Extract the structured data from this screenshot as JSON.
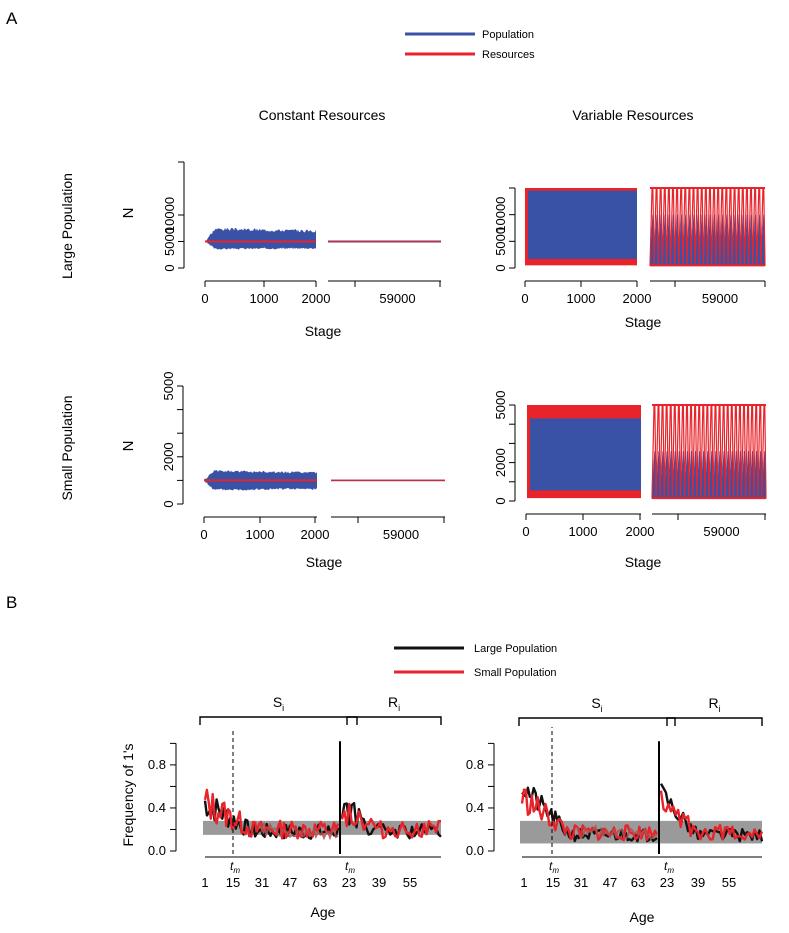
{
  "panel_labels": {
    "a": "A",
    "b": "B"
  },
  "colors": {
    "population": "#3a52a6",
    "resources": "#e8232a",
    "large": "#111111",
    "small": "#e8232a",
    "band": "#9a9a9a",
    "blend": "#b05050"
  },
  "legend_a": [
    {
      "label": "Population",
      "color": "#3a52a6"
    },
    {
      "label": "Resources",
      "color": "#e8232a"
    }
  ],
  "legend_b": [
    {
      "label": "Large Population",
      "color": "#111111"
    },
    {
      "label": "Small Population",
      "color": "#e8232a"
    }
  ],
  "column_titles": [
    "Constant Resources",
    "Variable Resources"
  ],
  "row_titles": [
    "Large Population",
    "Small Population"
  ],
  "chart_data": [
    {
      "id": "A-large-constant",
      "type": "line",
      "ylabel": "N",
      "xlabel": "Stage",
      "yticks": [
        "0",
        "5000",
        "10000"
      ],
      "ylim": [
        0,
        20000
      ],
      "xticks_left": [
        "0",
        "1000",
        "2000"
      ],
      "xtick_right": "59000",
      "series": [
        {
          "name": "Population",
          "mean": 5000,
          "min_envelope": 3600,
          "max_envelope": 7400
        },
        {
          "name": "Resources",
          "value": 5000
        }
      ]
    },
    {
      "id": "A-large-variable",
      "type": "line",
      "ylabel": "",
      "xlabel": "Stage",
      "yticks": [
        "0",
        "5000",
        "10000"
      ],
      "ylim": [
        0,
        15000
      ],
      "xticks_left": [
        "0",
        "1000",
        "2000"
      ],
      "xtick_right": "59000",
      "series": [
        {
          "name": "Population",
          "min": 500,
          "max_left": 14500,
          "max_right": 10000
        },
        {
          "name": "Resources",
          "min": 500,
          "max": 15000
        }
      ]
    },
    {
      "id": "A-small-constant",
      "type": "line",
      "ylabel": "N",
      "xlabel": "Stage",
      "yticks": [
        "0",
        "1000",
        "2000",
        "3000",
        "4000",
        "5000"
      ],
      "yticks_labeled": [
        "0",
        "2000",
        "5000"
      ],
      "ylim": [
        0,
        5000
      ],
      "xticks_left": [
        "0",
        "1000",
        "2000"
      ],
      "xtick_right": "59000",
      "series": [
        {
          "name": "Population",
          "mean": 1000,
          "min_envelope": 600,
          "max_envelope": 1400
        },
        {
          "name": "Resources",
          "value": 1000
        }
      ]
    },
    {
      "id": "A-small-variable",
      "type": "line",
      "ylabel": "",
      "xlabel": "Stage",
      "yticks": [
        "0",
        "1000",
        "2000",
        "3000",
        "4000",
        "5000"
      ],
      "yticks_labeled": [
        "0",
        "2000",
        "5000"
      ],
      "ylim": [
        0,
        5000
      ],
      "xticks_left": [
        "0",
        "1000",
        "2000"
      ],
      "xtick_right": "59000",
      "series": [
        {
          "name": "Population",
          "min": 150,
          "max_left": 4300,
          "max_right": 2600
        },
        {
          "name": "Resources",
          "min": 150,
          "max": 5000
        }
      ]
    },
    {
      "id": "B-constant",
      "type": "line",
      "ylabel": "Frequency of 1's",
      "xlabel": "Age",
      "yticks": [
        "0.0",
        "0.4",
        "0.8"
      ],
      "ylim": [
        0,
        1.05
      ],
      "xticks_left": [
        "1",
        "15",
        "31",
        "47",
        "63"
      ],
      "xticks_right": [
        "23",
        "39",
        "55"
      ],
      "bracket_left": "S",
      "bracket_right": "R",
      "bracket_sub": "i",
      "tm_label": "t",
      "tm_sub": "m",
      "band": [
        0.15,
        0.28
      ],
      "series": [
        {
          "name": "Large Population",
          "seed": 7,
          "start": 0.45,
          "level": 0.18,
          "amp": 0.12
        },
        {
          "name": "Small Population",
          "seed": 13,
          "start": 0.45,
          "level": 0.2,
          "amp": 0.14
        }
      ]
    },
    {
      "id": "B-variable",
      "type": "line",
      "ylabel": "",
      "xlabel": "Age",
      "yticks": [
        "0.0",
        "0.4",
        "0.8"
      ],
      "ylim": [
        0,
        1.05
      ],
      "xticks_left": [
        "1",
        "15",
        "31",
        "47",
        "63"
      ],
      "xticks_right": [
        "23",
        "39",
        "55"
      ],
      "bracket_left": "S",
      "bracket_right": "R",
      "bracket_sub": "i",
      "tm_label": "t",
      "tm_sub": "m",
      "band": [
        0.07,
        0.28
      ],
      "series": [
        {
          "name": "Large Population",
          "seed": 21,
          "start": 0.6,
          "level": 0.15,
          "amp": 0.1
        },
        {
          "name": "Small Population",
          "seed": 33,
          "start": 0.5,
          "level": 0.17,
          "amp": 0.12
        }
      ]
    }
  ]
}
